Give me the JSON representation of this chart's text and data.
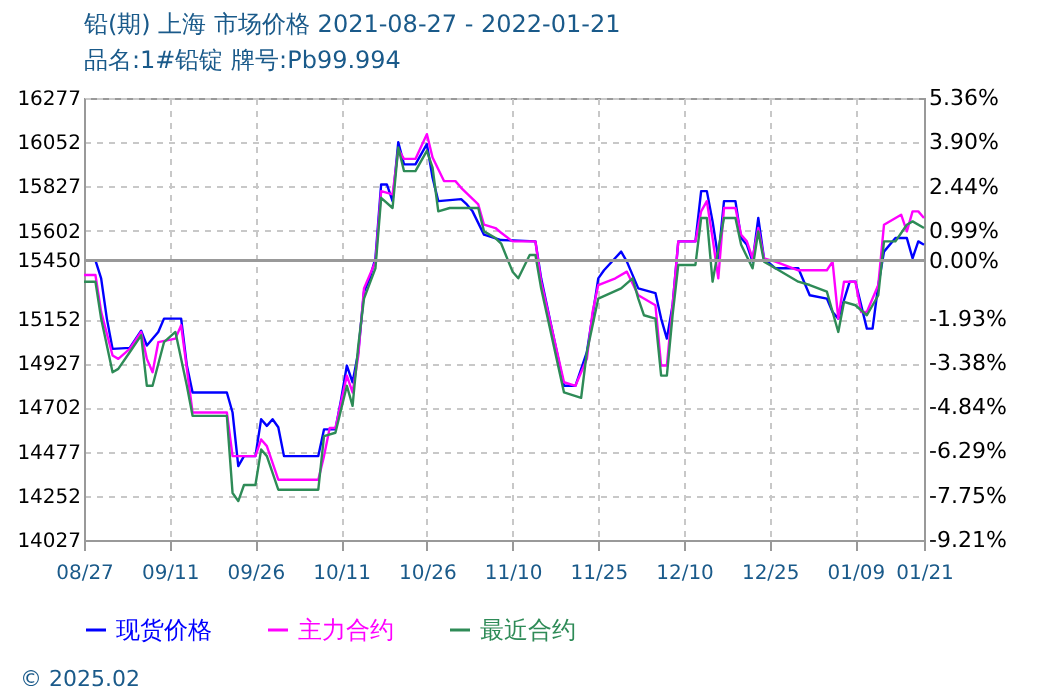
{
  "chart_data": {
    "type": "line",
    "title": "铅(期) 上海 市场价格 2021-08-27 - 2022-01-21",
    "subtitle": "品名:1#铅锭 牌号:Pb99.994",
    "xlim": [
      "2021-08-27",
      "2022-01-21"
    ],
    "xticks": [
      {
        "value": "2021-08-27",
        "label": "08/27"
      },
      {
        "value": "2021-09-11",
        "label": "09/11"
      },
      {
        "value": "2021-09-26",
        "label": "09/26"
      },
      {
        "value": "2021-10-11",
        "label": "10/11"
      },
      {
        "value": "2021-10-26",
        "label": "10/26"
      },
      {
        "value": "2021-11-10",
        "label": "11/10"
      },
      {
        "value": "2021-11-25",
        "label": "11/25"
      },
      {
        "value": "2021-12-10",
        "label": "12/10"
      },
      {
        "value": "2021-12-25",
        "label": "12/25"
      },
      {
        "value": "2022-01-09",
        "label": "01/09"
      },
      {
        "value": "2022-01-21",
        "label": "01/21"
      }
    ],
    "ylim": [
      14027,
      16277
    ],
    "yticks": [
      14027,
      14252,
      14477,
      14702,
      14927,
      15152,
      15450,
      15602,
      15827,
      16052,
      16277
    ],
    "y2lim": [
      -9.21,
      5.36
    ],
    "y2ticks": [
      {
        "value": -9.21,
        "label": "-9.21%"
      },
      {
        "value": -7.75,
        "label": "-7.75%"
      },
      {
        "value": -6.29,
        "label": "-6.29%"
      },
      {
        "value": -4.84,
        "label": "-4.84%"
      },
      {
        "value": -3.38,
        "label": "-3.38%"
      },
      {
        "value": -1.93,
        "label": "-1.93%"
      },
      {
        "value": 0,
        "label": "0.00%"
      },
      {
        "value": 0.99,
        "label": "0.99%"
      },
      {
        "value": 2.44,
        "label": "2.44%"
      },
      {
        "value": 3.9,
        "label": "3.90%"
      },
      {
        "value": 5.36,
        "label": "5.36%"
      }
    ],
    "ref_lines": [
      {
        "axis": "y2",
        "value": 0,
        "color": "#999999"
      }
    ],
    "grid": true,
    "legend": "bottom",
    "annotations": [
      "© 2025.02"
    ],
    "series": [
      {
        "name": "现货价格",
        "color": "#0000ff",
        "x": [
          "2021-08-27",
          "2021-08-29",
          "2021-08-30",
          "2021-08-31",
          "2021-09-01",
          "2021-09-04",
          "2021-09-06",
          "2021-09-07",
          "2021-09-09",
          "2021-09-10",
          "2021-09-13",
          "2021-09-14",
          "2021-09-15",
          "2021-09-21",
          "2021-09-22",
          "2021-09-23",
          "2021-09-24",
          "2021-09-26",
          "2021-09-27",
          "2021-09-28",
          "2021-09-29",
          "2021-09-30",
          "2021-10-01",
          "2021-10-07",
          "2021-10-08",
          "2021-10-10",
          "2021-10-11",
          "2021-10-12",
          "2021-10-13",
          "2021-10-14",
          "2021-10-15",
          "2021-10-16",
          "2021-10-17",
          "2021-10-18",
          "2021-10-19",
          "2021-10-20",
          "2021-10-21",
          "2021-10-22",
          "2021-10-24",
          "2021-10-26",
          "2021-10-27",
          "2021-10-28",
          "2021-11-01",
          "2021-11-02",
          "2021-11-03",
          "2021-11-05",
          "2021-11-08",
          "2021-11-14",
          "2021-11-15",
          "2021-11-19",
          "2021-11-21",
          "2021-11-23",
          "2021-11-25",
          "2021-11-26",
          "2021-11-29",
          "2021-11-30",
          "2021-12-02",
          "2021-12-05",
          "2021-12-06",
          "2021-12-07",
          "2021-12-08",
          "2021-12-09",
          "2021-12-12",
          "2021-12-13",
          "2021-12-14",
          "2021-12-15",
          "2021-12-16",
          "2021-12-17",
          "2021-12-19",
          "2021-12-20",
          "2021-12-21",
          "2021-12-22",
          "2021-12-23",
          "2021-12-24",
          "2021-12-26",
          "2021-12-30",
          "2022-01-01",
          "2022-01-04",
          "2022-01-05",
          "2022-01-06",
          "2022-01-08",
          "2022-01-09",
          "2022-01-11",
          "2022-01-12",
          "2022-01-13",
          "2022-01-14",
          "2022-01-16",
          "2022-01-18",
          "2022-01-19",
          "2022-01-20",
          "2022-01-21"
        ],
        "values": [
          15450,
          15450,
          15359,
          15154,
          15000,
          15005,
          15092,
          15017,
          15086,
          15154,
          15154,
          14915,
          14778,
          14778,
          14676,
          14403,
          14454,
          14454,
          14642,
          14608,
          14642,
          14601,
          14454,
          14454,
          14590,
          14590,
          14744,
          14915,
          14830,
          14983,
          15291,
          15359,
          15461,
          15837,
          15837,
          15752,
          16052,
          15939,
          15939,
          16042,
          15871,
          15752,
          15762,
          15735,
          15700,
          15581,
          15554,
          15547,
          15359,
          14812,
          14812,
          14983,
          15359,
          15400,
          15495,
          15444,
          15308,
          15284,
          15154,
          15052,
          15222,
          15547,
          15547,
          15803,
          15803,
          15649,
          15461,
          15752,
          15752,
          15564,
          15530,
          15444,
          15666,
          15461,
          15410,
          15410,
          15273,
          15256,
          15188,
          15154,
          15342,
          15342,
          15103,
          15103,
          15325,
          15495,
          15564,
          15564,
          15461,
          15547,
          15530
        ]
      },
      {
        "name": "主力合约",
        "color": "#ff00ff",
        "x": [
          "2021-08-27",
          "2021-08-29",
          "2021-08-30",
          "2021-09-01",
          "2021-09-02",
          "2021-09-04",
          "2021-09-06",
          "2021-09-07",
          "2021-09-08",
          "2021-09-09",
          "2021-09-12",
          "2021-09-13",
          "2021-09-14",
          "2021-09-15",
          "2021-09-21",
          "2021-09-22",
          "2021-09-26",
          "2021-09-27",
          "2021-09-28",
          "2021-09-30",
          "2021-10-07",
          "2021-10-08",
          "2021-10-09",
          "2021-10-10",
          "2021-10-12",
          "2021-10-13",
          "2021-10-14",
          "2021-10-15",
          "2021-10-17",
          "2021-10-18",
          "2021-10-20",
          "2021-10-21",
          "2021-10-22",
          "2021-10-24",
          "2021-10-26",
          "2021-10-27",
          "2021-10-29",
          "2021-10-31",
          "2021-11-01",
          "2021-11-04",
          "2021-11-05",
          "2021-11-07",
          "2021-11-08",
          "2021-11-10",
          "2021-11-14",
          "2021-11-15",
          "2021-11-19",
          "2021-11-21",
          "2021-11-23",
          "2021-11-24",
          "2021-11-25",
          "2021-11-28",
          "2021-11-30",
          "2021-12-02",
          "2021-12-05",
          "2021-12-06",
          "2021-12-07",
          "2021-12-08",
          "2021-12-09",
          "2021-12-12",
          "2021-12-13",
          "2021-12-14",
          "2021-12-15",
          "2021-12-16",
          "2021-12-17",
          "2021-12-19",
          "2021-12-20",
          "2021-12-21",
          "2021-12-22",
          "2021-12-23",
          "2021-12-24",
          "2021-12-26",
          "2021-12-30",
          "2022-01-04",
          "2022-01-05",
          "2022-01-06",
          "2022-01-07",
          "2022-01-09",
          "2022-01-10",
          "2022-01-11",
          "2022-01-13",
          "2022-01-14",
          "2022-01-17",
          "2022-01-18",
          "2022-01-19",
          "2022-01-20",
          "2022-01-21"
        ],
        "values": [
          15376,
          15376,
          15188,
          14966,
          14949,
          15000,
          15086,
          14949,
          14881,
          15034,
          15052,
          15120,
          14898,
          14676,
          14676,
          14454,
          14454,
          14539,
          14505,
          14334,
          14334,
          14454,
          14597,
          14597,
          14864,
          14778,
          14966,
          15308,
          15444,
          15803,
          15786,
          16015,
          15967,
          15967,
          16093,
          15974,
          15854,
          15854,
          15820,
          15735,
          15632,
          15615,
          15591,
          15547,
          15547,
          15342,
          14830,
          14812,
          14949,
          15188,
          15325,
          15359,
          15393,
          15273,
          15222,
          14915,
          14915,
          15222,
          15547,
          15547,
          15700,
          15752,
          15564,
          15359,
          15717,
          15717,
          15581,
          15547,
          15461,
          15615,
          15461,
          15444,
          15400,
          15400,
          15444,
          15154,
          15342,
          15342,
          15188,
          15188,
          15325,
          15632,
          15683,
          15598,
          15700,
          15700,
          15666
        ]
      },
      {
        "name": "最近合约",
        "color": "#2e8b57",
        "x": [
          "2021-08-27",
          "2021-08-29",
          "2021-08-30",
          "2021-09-01",
          "2021-09-02",
          "2021-09-04",
          "2021-09-06",
          "2021-09-07",
          "2021-09-08",
          "2021-09-10",
          "2021-09-12",
          "2021-09-14",
          "2021-09-15",
          "2021-09-21",
          "2021-09-22",
          "2021-09-23",
          "2021-09-24",
          "2021-09-26",
          "2021-09-27",
          "2021-09-28",
          "2021-09-30",
          "2021-10-07",
          "2021-10-08",
          "2021-10-10",
          "2021-10-12",
          "2021-10-13",
          "2021-10-14",
          "2021-10-15",
          "2021-10-17",
          "2021-10-18",
          "2021-10-20",
          "2021-10-21",
          "2021-10-22",
          "2021-10-24",
          "2021-10-26",
          "2021-10-27",
          "2021-10-28",
          "2021-10-30",
          "2021-11-04",
          "2021-11-05",
          "2021-11-07",
          "2021-11-08",
          "2021-11-10",
          "2021-11-11",
          "2021-11-13",
          "2021-11-14",
          "2021-11-15",
          "2021-11-19",
          "2021-11-22",
          "2021-11-23",
          "2021-11-25",
          "2021-11-29",
          "2021-12-01",
          "2021-12-02",
          "2021-12-03",
          "2021-12-05",
          "2021-12-06",
          "2021-12-07",
          "2021-12-08",
          "2021-12-09",
          "2021-12-12",
          "2021-12-13",
          "2021-12-14",
          "2021-12-15",
          "2021-12-17",
          "2021-12-19",
          "2021-12-20",
          "2021-12-22",
          "2021-12-23",
          "2021-12-24",
          "2021-12-26",
          "2021-12-30",
          "2022-01-01",
          "2022-01-04",
          "2022-01-06",
          "2022-01-07",
          "2022-01-09",
          "2022-01-11",
          "2022-01-13",
          "2022-01-14",
          "2022-01-16",
          "2022-01-18",
          "2022-01-19",
          "2022-01-21"
        ],
        "values": [
          15342,
          15342,
          15154,
          14881,
          14898,
          14983,
          15069,
          14812,
          14812,
          15034,
          15086,
          14812,
          14659,
          14659,
          14266,
          14225,
          14307,
          14307,
          14488,
          14454,
          14283,
          14283,
          14556,
          14573,
          14812,
          14710,
          15017,
          15256,
          15410,
          15769,
          15717,
          16025,
          15905,
          15905,
          16008,
          15922,
          15700,
          15717,
          15717,
          15598,
          15564,
          15536,
          15393,
          15359,
          15478,
          15478,
          15308,
          14778,
          14751,
          14983,
          15256,
          15308,
          15359,
          15256,
          15171,
          15154,
          14864,
          14864,
          15171,
          15427,
          15427,
          15666,
          15666,
          15342,
          15666,
          15666,
          15530,
          15410,
          15598,
          15444,
          15410,
          15342,
          15325,
          15291,
          15086,
          15239,
          15222,
          15171,
          15273,
          15547,
          15547,
          15632,
          15649,
          15615
        ]
      }
    ]
  }
}
